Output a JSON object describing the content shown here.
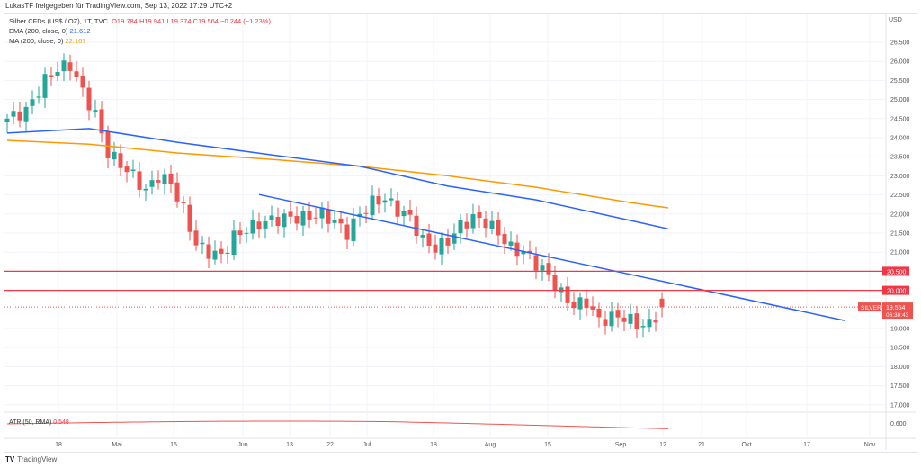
{
  "header": {
    "shared_by": "LukasTF freigegeben für TradingView.com, Sep 13, 2022 17:29 UTC+2"
  },
  "legend": {
    "symbol": "Silber CFDs (US$ / OZ), 1T, TVC",
    "o": "O19.784",
    "h": "H19.941",
    "l": "L19.374",
    "c": "C19.564",
    "change": "−0.244 (−1.23%)",
    "ema_label": "EMA (200, close, 0)",
    "ema_value": "21.612",
    "ma_label": "MA (200, close, 0)",
    "ma_value": "22.167"
  },
  "atr": {
    "label": "ATR (50, RMA)",
    "value": "0.548",
    "axis_value": "0.600"
  },
  "axis": {
    "currency": "USD",
    "price_ticks": [
      "26.500",
      "26.000",
      "25.500",
      "25.000",
      "24.500",
      "24.000",
      "23.500",
      "23.000",
      "22.500",
      "22.000",
      "21.500",
      "21.000",
      "19.000",
      "18.500",
      "18.000",
      "17.500",
      "17.000"
    ],
    "time_ticks": [
      "18",
      "Mai",
      "16",
      "Jun",
      "13",
      "22",
      "Jul",
      "18",
      "Aug",
      "15",
      "Sep",
      "12",
      "21",
      "Okt",
      "17",
      "Nov"
    ]
  },
  "levels": {
    "l1": "20.500",
    "l2": "20.000",
    "symbol_tag": "SILVER",
    "last_price": "19.564",
    "countdown": "06:30:43"
  },
  "brand": "TradingView",
  "colors": {
    "up": "#26a69a",
    "down": "#ef5350",
    "ema": "#2962ff",
    "ma": "#ff9800",
    "level": "#f23645"
  },
  "chart_data": {
    "type": "candlestick",
    "ylim": [
      16.75,
      26.75
    ],
    "close_keypoints": [
      [
        0,
        24.5
      ],
      [
        3,
        24.7
      ],
      [
        6,
        25.5
      ],
      [
        8,
        25.8
      ],
      [
        10,
        25.9
      ],
      [
        12,
        25.2
      ],
      [
        14,
        24.6
      ],
      [
        16,
        23.6
      ],
      [
        18,
        23.3
      ],
      [
        20,
        23.0
      ],
      [
        22,
        22.6
      ],
      [
        24,
        23.0
      ],
      [
        26,
        22.8
      ],
      [
        28,
        22.1
      ],
      [
        30,
        21.2
      ],
      [
        32,
        21.0
      ],
      [
        34,
        20.9
      ],
      [
        36,
        21.4
      ],
      [
        38,
        21.6
      ],
      [
        41,
        21.8
      ],
      [
        44,
        21.9
      ],
      [
        47,
        21.9
      ],
      [
        50,
        22.0
      ],
      [
        52,
        21.8
      ],
      [
        54,
        21.5
      ],
      [
        56,
        22.0
      ],
      [
        58,
        22.3
      ],
      [
        60,
        22.4
      ],
      [
        62,
        22.1
      ],
      [
        64,
        21.9
      ],
      [
        66,
        21.3
      ],
      [
        68,
        21.1
      ],
      [
        70,
        21.3
      ],
      [
        72,
        21.7
      ],
      [
        74,
        21.9
      ],
      [
        76,
        21.8
      ],
      [
        78,
        21.5
      ],
      [
        80,
        21.1
      ],
      [
        82,
        21.0
      ],
      [
        84,
        20.7
      ],
      [
        86,
        20.4
      ],
      [
        88,
        19.9
      ],
      [
        90,
        19.6
      ],
      [
        92,
        19.7
      ],
      [
        94,
        19.2
      ],
      [
        96,
        19.3
      ],
      [
        98,
        19.3
      ],
      [
        100,
        19.1
      ],
      [
        102,
        19.1
      ],
      [
        104,
        19.56
      ]
    ],
    "ema": [
      [
        0,
        24.12
      ],
      [
        13,
        24.24
      ],
      [
        27,
        23.88
      ],
      [
        42,
        23.55
      ],
      [
        56,
        23.25
      ],
      [
        70,
        22.73
      ],
      [
        84,
        22.37
      ],
      [
        99,
        21.83
      ],
      [
        105,
        21.61
      ]
    ],
    "ma": [
      [
        0,
        23.93
      ],
      [
        13,
        23.83
      ],
      [
        27,
        23.6
      ],
      [
        42,
        23.43
      ],
      [
        56,
        23.25
      ],
      [
        70,
        23.0
      ],
      [
        84,
        22.7
      ],
      [
        99,
        22.3
      ],
      [
        105,
        22.16
      ]
    ],
    "trendline": [
      [
        40,
        22.51
      ],
      [
        133,
        19.21
      ]
    ],
    "hlines": [
      20.5,
      20.0
    ],
    "last": 19.564
  }
}
